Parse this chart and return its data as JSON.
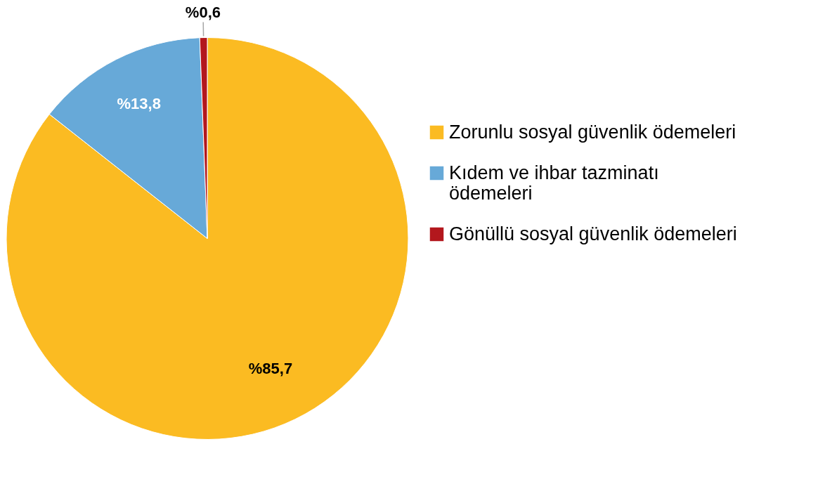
{
  "chart_data": {
    "type": "pie",
    "categories": [
      "Zorunlu sosyal güvenlik ödemeleri",
      "Kıdem ve ihbar tazminatı ödemeleri",
      "Gönüllü sosyal güvenlik ödemeleri"
    ],
    "values": [
      85.7,
      13.8,
      0.6
    ],
    "colors": [
      "#fbbb22",
      "#67a9d8",
      "#b3171d"
    ],
    "value_labels": [
      "%85,7",
      "%13,8",
      "%0,6"
    ],
    "legend": "right"
  }
}
